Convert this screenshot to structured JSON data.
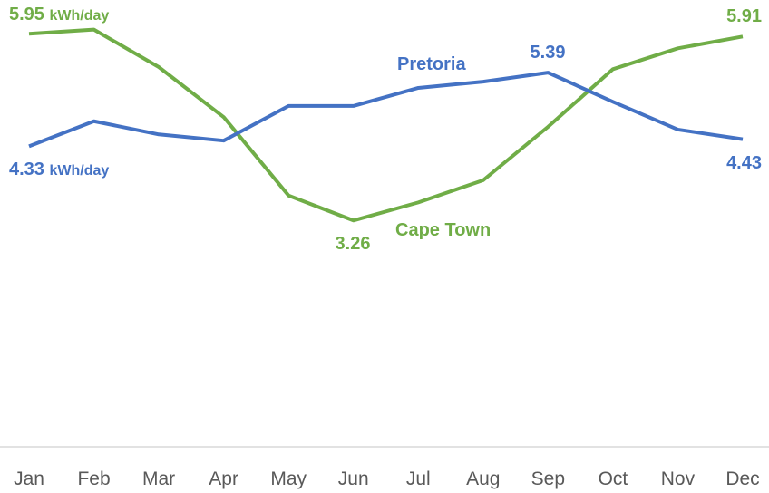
{
  "chart_data": {
    "type": "line",
    "categories": [
      "Jan",
      "Feb",
      "Mar",
      "Apr",
      "May",
      "Jun",
      "Jul",
      "Aug",
      "Sep",
      "Oct",
      "Nov",
      "Dec"
    ],
    "ylim": [
      0,
      6.4
    ],
    "unit": "kWh/day",
    "grid": false,
    "series": [
      {
        "name": "Pretoria",
        "color": "#4472C4",
        "values": [
          4.33,
          4.69,
          4.5,
          4.41,
          4.91,
          4.91,
          5.17,
          5.26,
          5.39,
          4.97,
          4.57,
          4.43
        ]
      },
      {
        "name": "Cape Town",
        "color": "#70AD47",
        "values": [
          5.95,
          6.01,
          5.47,
          4.75,
          3.62,
          3.26,
          3.52,
          3.84,
          4.61,
          5.44,
          5.74,
          5.91
        ]
      }
    ],
    "annotations": [
      {
        "series": "Cape Town",
        "text": "5.95",
        "unit": "kWh/day"
      },
      {
        "series": "Pretoria",
        "text": "4.33",
        "unit": "kWh/day"
      },
      {
        "series": "Pretoria",
        "text": "5.39"
      },
      {
        "series": "Pretoria",
        "text": "4.43"
      },
      {
        "series": "Cape Town",
        "text": "3.26"
      },
      {
        "series": "Cape Town",
        "text": "5.91"
      }
    ]
  }
}
